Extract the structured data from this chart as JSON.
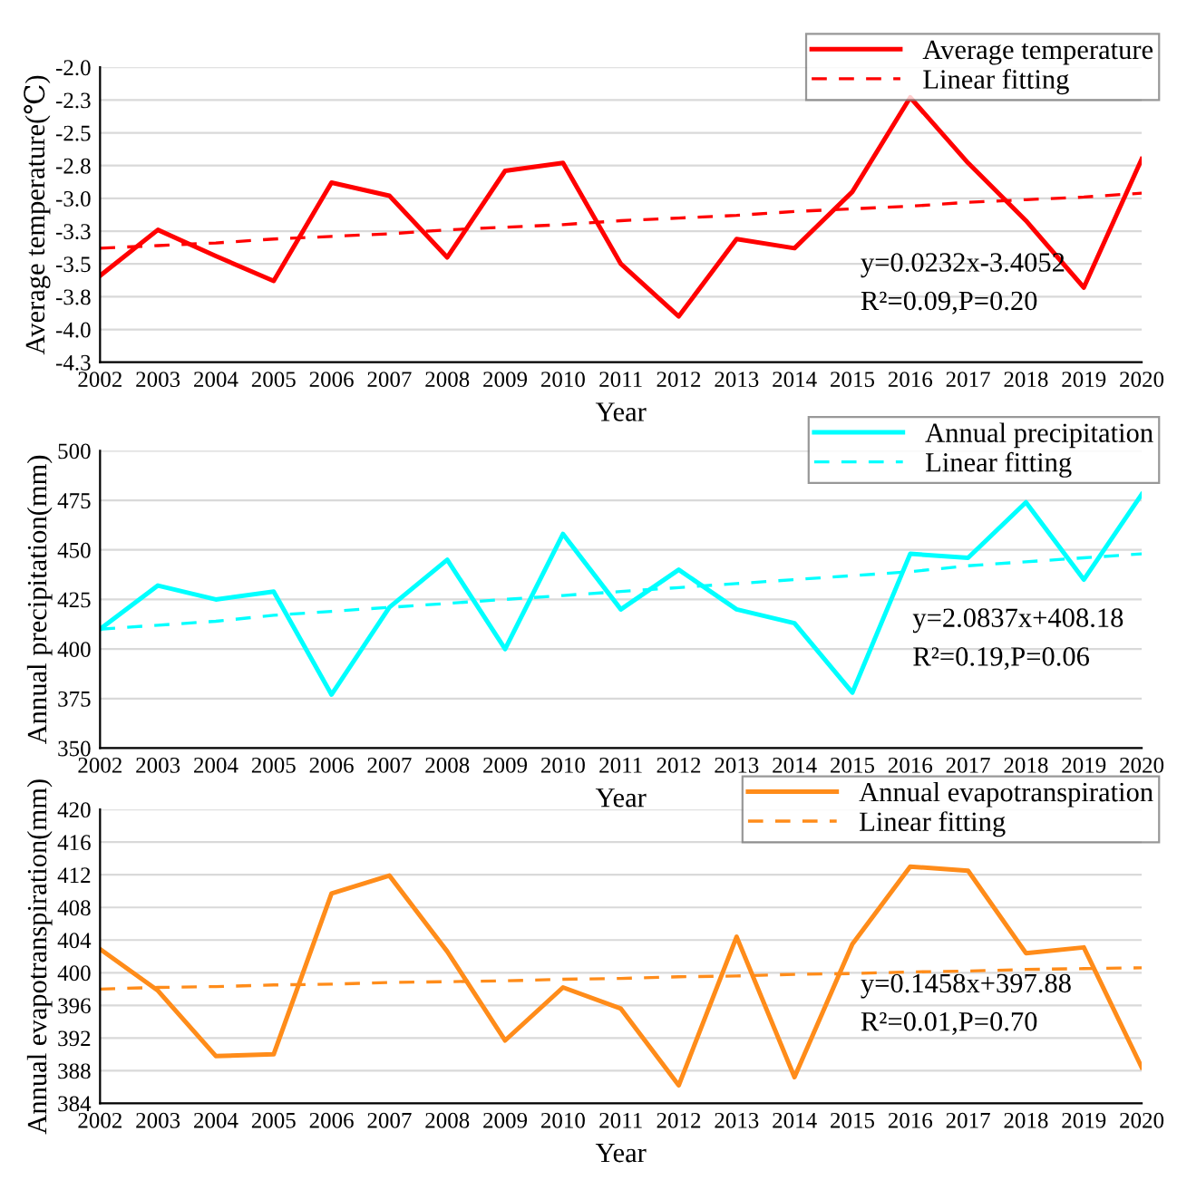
{
  "chart_data": [
    {
      "type": "line",
      "xlabel": "Year",
      "ylabel": "Average temperature(℃)",
      "categories": [
        "2002",
        "2003",
        "2004",
        "2005",
        "2006",
        "2007",
        "2008",
        "2009",
        "2010",
        "2011",
        "2012",
        "2013",
        "2014",
        "2015",
        "2016",
        "2017",
        "2018",
        "2019",
        "2020"
      ],
      "series": [
        {
          "name": "Average temperature",
          "color": "#ff0000",
          "line_style": "solid",
          "values": [
            -3.59,
            -3.24,
            -3.44,
            -3.63,
            -2.88,
            -2.98,
            -3.45,
            -2.79,
            -2.73,
            -3.5,
            -3.9,
            -3.31,
            -3.38,
            -2.95,
            -2.23,
            -2.73,
            -3.17,
            -3.68,
            -2.7
          ]
        },
        {
          "name": "Linear fitting",
          "color": "#ff0000",
          "line_style": "dashed",
          "values": [
            -3.38,
            -3.36,
            -3.34,
            -3.31,
            -3.29,
            -3.27,
            -3.24,
            -3.22,
            -3.2,
            -3.17,
            -3.15,
            -3.13,
            -3.1,
            -3.08,
            -3.06,
            -3.03,
            -3.01,
            -2.99,
            -2.96
          ]
        }
      ],
      "ylim": [
        -4.25,
        -2.0
      ],
      "yticks": [
        {
          "value": -4.25,
          "label": "-4.3"
        },
        {
          "value": -4.0,
          "label": "-4.0"
        },
        {
          "value": -3.75,
          "label": "-3.8"
        },
        -3.5,
        {
          "value": -3.25,
          "label": "-3.3"
        },
        {
          "value": -3.0,
          "label": "-3.0"
        },
        {
          "value": -2.75,
          "label": "-2.8"
        },
        -2.5,
        {
          "value": -2.25,
          "label": "-2.3"
        },
        {
          "value": -2.0,
          "label": "-2.0"
        }
      ],
      "annotations": [
        "y=0.0232x-3.4052",
        "R²=0.09,P=0.20"
      ],
      "grid": "y",
      "legend": "top right",
      "marker": "none"
    },
    {
      "type": "line",
      "xlabel": "Year",
      "ylabel": "Annual precipitation(mm)",
      "categories": [
        "2002",
        "2003",
        "2004",
        "2005",
        "2006",
        "2007",
        "2008",
        "2009",
        "2010",
        "2011",
        "2012",
        "2013",
        "2014",
        "2015",
        "2016",
        "2017",
        "2018",
        "2019",
        "2020"
      ],
      "series": [
        {
          "name": "Annual precipitation",
          "color": "#00ffff",
          "line_style": "solid",
          "values": [
            410,
            432,
            425,
            429,
            377,
            421,
            445,
            400,
            458,
            420,
            440,
            420,
            413,
            378,
            448,
            446,
            474,
            435,
            478
          ]
        },
        {
          "name": "Linear fitting",
          "color": "#00ffff",
          "line_style": "dashed",
          "values": [
            410,
            412,
            414,
            417,
            419,
            421,
            423,
            425,
            427,
            429,
            431,
            433,
            435,
            437,
            439,
            442,
            444,
            446,
            448
          ]
        }
      ],
      "ylim": [
        350,
        500
      ],
      "yticks": [
        350,
        375,
        400,
        425,
        450,
        475,
        500
      ],
      "annotations": [
        "y=2.0837x+408.18",
        "R²=0.19,P=0.06"
      ],
      "grid": "y",
      "legend": "top right",
      "marker": "none"
    },
    {
      "type": "line",
      "xlabel": "Year",
      "ylabel": "Annual evapotranspiration(mm)",
      "categories": [
        "2002",
        "2003",
        "2004",
        "2005",
        "2006",
        "2007",
        "2008",
        "2009",
        "2010",
        "2011",
        "2012",
        "2013",
        "2014",
        "2015",
        "2016",
        "2017",
        "2018",
        "2019",
        "2020"
      ],
      "series": [
        {
          "name": "Annual evapotranspiration",
          "color": "#ff8c1a",
          "line_style": "solid",
          "values": [
            402.9,
            397.8,
            389.8,
            390.0,
            409.7,
            411.9,
            402.6,
            391.7,
            398.2,
            395.6,
            386.2,
            404.4,
            387.2,
            403.5,
            413.0,
            412.5,
            402.4,
            403.1,
            388.4
          ]
        },
        {
          "name": "Linear fitting",
          "color": "#ff8c1a",
          "line_style": "dashed",
          "values": [
            398.0,
            398.2,
            398.3,
            398.5,
            398.6,
            398.8,
            398.9,
            399.0,
            399.2,
            399.3,
            399.5,
            399.6,
            399.8,
            399.9,
            400.1,
            400.2,
            400.4,
            400.5,
            400.6
          ]
        }
      ],
      "ylim": [
        384,
        420
      ],
      "yticks": [
        384,
        388,
        392,
        396,
        400,
        404,
        408,
        412,
        416,
        420
      ],
      "annotations": [
        "y=0.1458x+397.88",
        "R²=0.01,P=0.70"
      ],
      "grid": "y",
      "legend": "top right",
      "marker": "none"
    }
  ]
}
